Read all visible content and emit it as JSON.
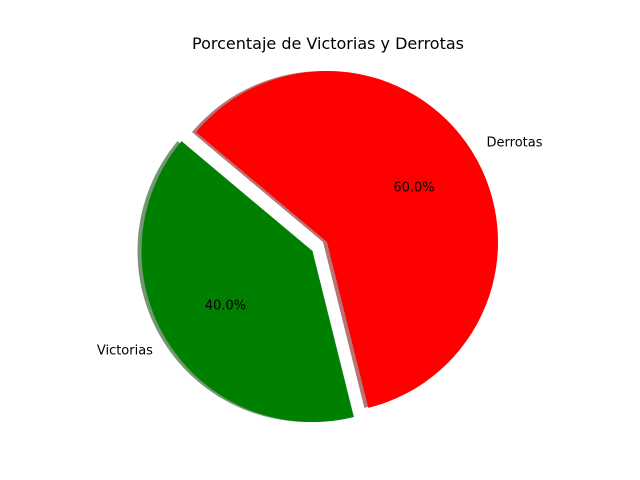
{
  "chart_data": {
    "type": "pie",
    "title": "Porcentaje de Victorias y Derrotas",
    "slices": [
      {
        "label": "Victorias",
        "value": 40.0,
        "pct_label": "40.0%",
        "color": "#008000",
        "exploded": true
      },
      {
        "label": "Derrotas",
        "value": 60.0,
        "pct_label": "60.0%",
        "color": "#ff0000",
        "exploded": false
      }
    ],
    "shadow": true,
    "start_angle_deg": 140
  }
}
